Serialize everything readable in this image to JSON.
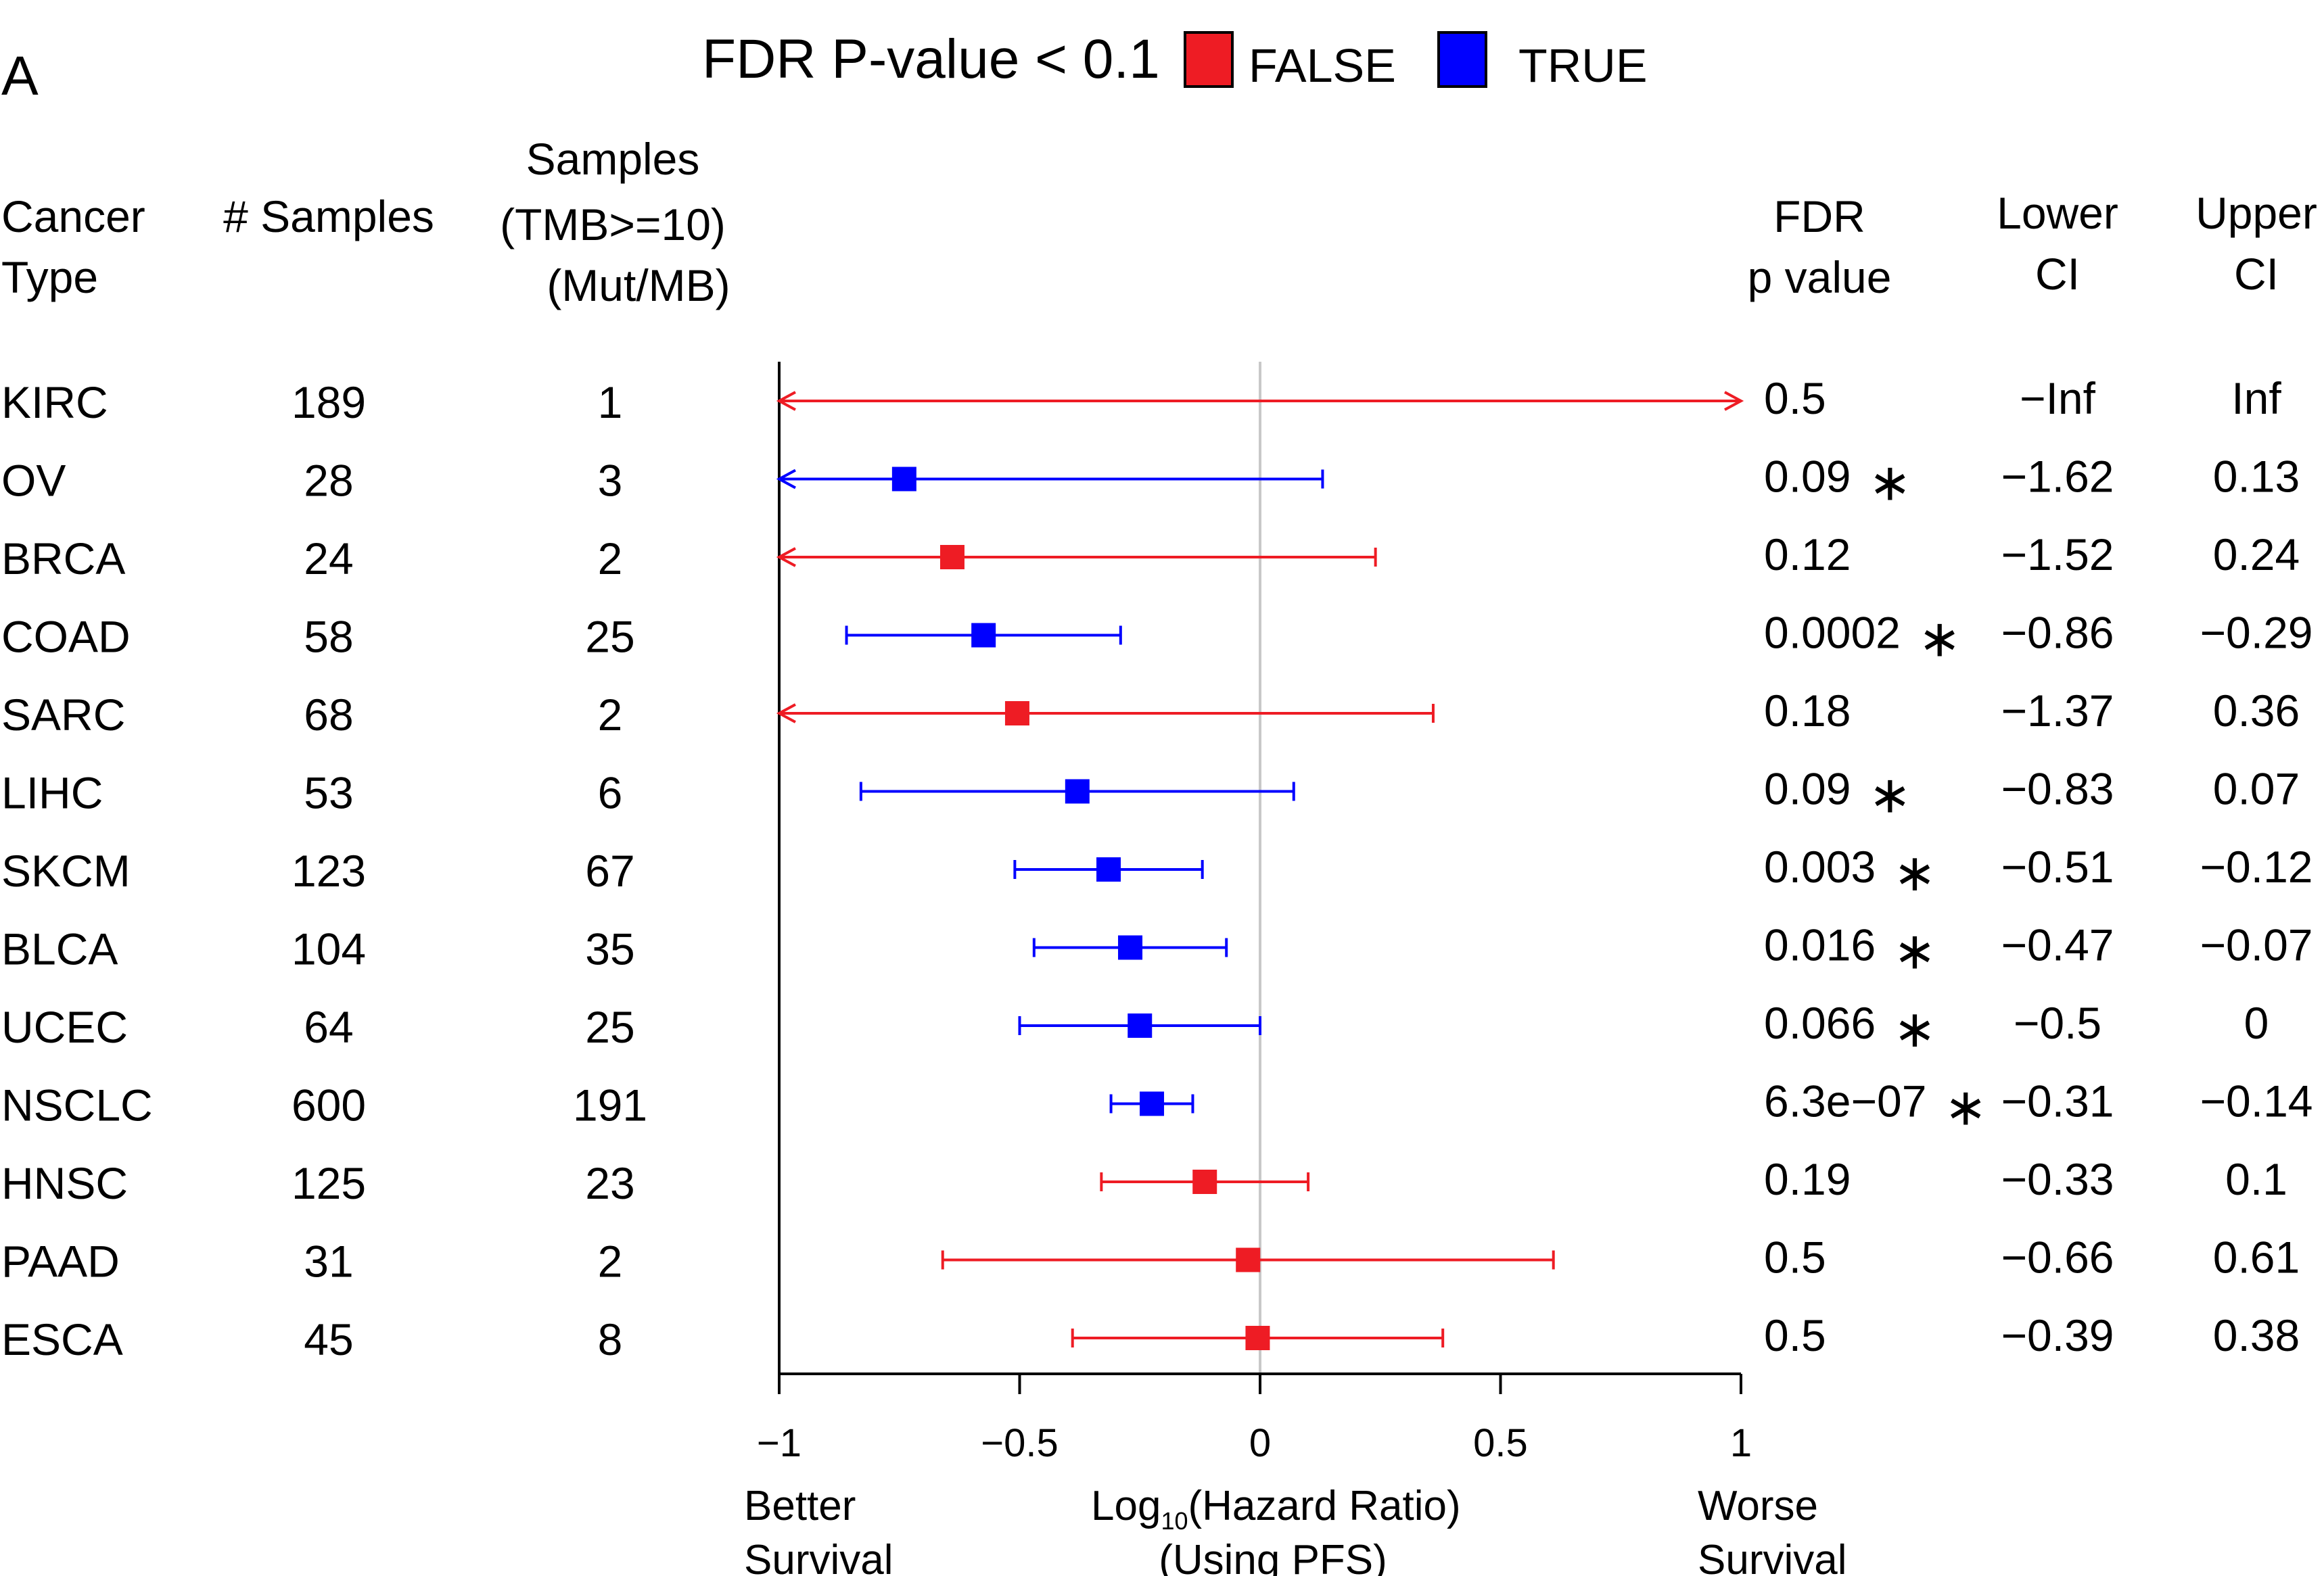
{
  "panel_label": "A",
  "legend": {
    "title": "FDR P-value < 0.1",
    "items": [
      {
        "label": "FALSE",
        "color": "#ee1c24"
      },
      {
        "label": "TRUE",
        "color": "#0000ff"
      }
    ]
  },
  "headers": {
    "cancer_type": [
      "Cancer",
      "Type"
    ],
    "n_samples": [
      "# Samples"
    ],
    "tmb_samples": [
      "Samples",
      "(TMB>=10)",
      "(Mut/MB)"
    ],
    "fdr": [
      "FDR",
      "p value"
    ],
    "lower": [
      "Lower",
      "CI"
    ],
    "upper": [
      "Upper",
      "CI"
    ]
  },
  "colors": {
    "false": "#ee1c24",
    "true": "#0000ff",
    "zero_line": "#c8c8c8",
    "axis": "#000000"
  },
  "chart_data": {
    "type": "forest",
    "xlabel_main": "Log",
    "xlabel_sub": "10",
    "xlabel_rest": "(Hazard Ratio)",
    "xlabel_line2": "(Using PFS)",
    "left_caption": [
      "Better",
      "Survival"
    ],
    "right_caption": [
      "Worse",
      "Survival"
    ],
    "xlim": [
      -1,
      1
    ],
    "ticks": [
      -1,
      -0.5,
      0,
      0.5,
      1
    ],
    "tick_labels": [
      "−1",
      "−0.5",
      "0",
      "0.5",
      "1"
    ],
    "rows": [
      {
        "cancer": "KIRC",
        "samples": "189",
        "tmb": "1",
        "estimate": null,
        "lower": null,
        "upper": null,
        "sig": false,
        "fdr": "0.5",
        "star": "",
        "lower_label": "−Inf",
        "upper_label": "Inf"
      },
      {
        "cancer": "OV",
        "samples": "28",
        "tmb": "3",
        "estimate": -0.74,
        "lower": -1.62,
        "upper": 0.13,
        "sig": true,
        "fdr": "0.09",
        "star": "∗",
        "lower_label": "−1.62",
        "upper_label": "0.13"
      },
      {
        "cancer": "BRCA",
        "samples": "24",
        "tmb": "2",
        "estimate": -0.64,
        "lower": -1.52,
        "upper": 0.24,
        "sig": false,
        "fdr": "0.12",
        "star": "",
        "lower_label": "−1.52",
        "upper_label": "0.24"
      },
      {
        "cancer": "COAD",
        "samples": "58",
        "tmb": "25",
        "estimate": -0.575,
        "lower": -0.86,
        "upper": -0.29,
        "sig": true,
        "fdr": "0.0002",
        "star": "∗",
        "lower_label": "−0.86",
        "upper_label": "−0.29"
      },
      {
        "cancer": "SARC",
        "samples": "68",
        "tmb": "2",
        "estimate": -0.505,
        "lower": -1.37,
        "upper": 0.36,
        "sig": false,
        "fdr": "0.18",
        "star": "",
        "lower_label": "−1.37",
        "upper_label": "0.36"
      },
      {
        "cancer": "LIHC",
        "samples": "53",
        "tmb": "6",
        "estimate": -0.38,
        "lower": -0.83,
        "upper": 0.07,
        "sig": true,
        "fdr": "0.09",
        "star": "∗",
        "lower_label": "−0.83",
        "upper_label": "0.07"
      },
      {
        "cancer": "SKCM",
        "samples": "123",
        "tmb": "67",
        "estimate": -0.315,
        "lower": -0.51,
        "upper": -0.12,
        "sig": true,
        "fdr": "0.003",
        "star": "∗",
        "lower_label": "−0.51",
        "upper_label": "−0.12"
      },
      {
        "cancer": "BLCA",
        "samples": "104",
        "tmb": "35",
        "estimate": -0.27,
        "lower": -0.47,
        "upper": -0.07,
        "sig": true,
        "fdr": "0.016",
        "star": "∗",
        "lower_label": "−0.47",
        "upper_label": "−0.07"
      },
      {
        "cancer": "UCEC",
        "samples": "64",
        "tmb": "25",
        "estimate": -0.25,
        "lower": -0.5,
        "upper": 0,
        "sig": true,
        "fdr": "0.066",
        "star": "∗",
        "lower_label": "−0.5",
        "upper_label": "0"
      },
      {
        "cancer": "NSCLC",
        "samples": "600",
        "tmb": "191",
        "estimate": -0.225,
        "lower": -0.31,
        "upper": -0.14,
        "sig": true,
        "fdr": "6.3e−07",
        "star": "∗",
        "lower_label": "−0.31",
        "upper_label": "−0.14"
      },
      {
        "cancer": "HNSC",
        "samples": "125",
        "tmb": "23",
        "estimate": -0.115,
        "lower": -0.33,
        "upper": 0.1,
        "sig": false,
        "fdr": "0.19",
        "star": "",
        "lower_label": "−0.33",
        "upper_label": "0.1"
      },
      {
        "cancer": "PAAD",
        "samples": "31",
        "tmb": "2",
        "estimate": -0.025,
        "lower": -0.66,
        "upper": 0.61,
        "sig": false,
        "fdr": "0.5",
        "star": "",
        "lower_label": "−0.66",
        "upper_label": "0.61"
      },
      {
        "cancer": "ESCA",
        "samples": "45",
        "tmb": "8",
        "estimate": -0.005,
        "lower": -0.39,
        "upper": 0.38,
        "sig": false,
        "fdr": "0.5",
        "star": "",
        "lower_label": "−0.39",
        "upper_label": "0.38"
      }
    ]
  }
}
